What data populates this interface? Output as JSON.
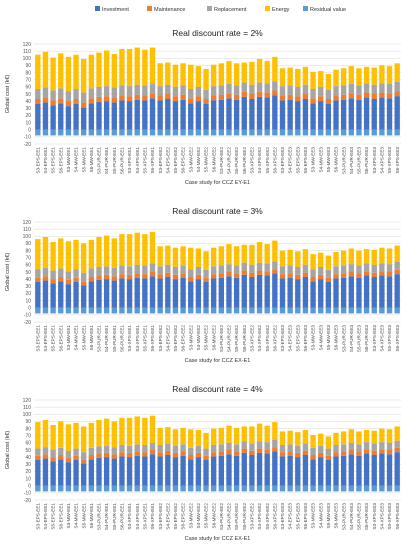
{
  "legend": {
    "items": [
      {
        "name": "Investment",
        "color": "#4472c4"
      },
      {
        "name": "Maintenance",
        "color": "#ed7d31"
      },
      {
        "name": "Replacement",
        "color": "#a5a5a5"
      },
      {
        "name": "Energy",
        "color": "#ffc000"
      },
      {
        "name": "Residual value",
        "color": "#5b9bd5"
      }
    ]
  },
  "categories": [
    "S3-EPS-EE1",
    "S4-EPS-EE1",
    "S5-EPS-EE1",
    "S6-EPS-EE1",
    "S3-MW-EE1",
    "S4-MW-EE1",
    "S5-MW-EE1",
    "S6-MW-EE1",
    "S3-PUR-EE1",
    "S4-PUR-EE1",
    "S5-PUR-EE1",
    "S6-PUR-EE1",
    "S3-XPS-EE1",
    "S4-XPS-EE1",
    "S5-XPS-EE1",
    "S6-XPS-EE1",
    "S3-EPS-EE2",
    "S4-EPS-EE2",
    "S5-EPS-EE2",
    "S6-EPS-EE2",
    "S3-MW-EE2",
    "S4-MW-EE2",
    "S5-MW-EE2",
    "S6-MW-EE2",
    "S3-PUR-EE2",
    "S4-PUR-EE2",
    "S5-PUR-EE2",
    "S6-PUR-EE2",
    "S3-XPS-EE2",
    "S4-XPS-EE2",
    "S5-XPS-EE2",
    "S6-XPS-EE2",
    "S3-EPS-EE3",
    "S4-EPS-EE3",
    "S5-EPS-EE3",
    "S6-EPS-EE3",
    "S3-MW-EE3",
    "S4-MW-EE3",
    "S5-MW-EE3",
    "S6-MW-EE3",
    "S3-PUR-EE3",
    "S4-PUR-EE3",
    "S5-PUR-EE3",
    "S6-PUR-EE3",
    "S3-XPS-EE3",
    "S4-XPS-EE3",
    "S5-XPS-EE3",
    "S6-XPS-EE3"
  ],
  "chart_data": [
    {
      "type": "bar",
      "stacked": true,
      "title": "Real discount rate = 2%",
      "xlabel": "Case study for CCZ EY-E1",
      "ylabel": "Global cost (k€)",
      "ylim": [
        -20,
        120
      ],
      "yticks": [
        -20,
        -10,
        0,
        10,
        20,
        30,
        40,
        50,
        60,
        70,
        80,
        90,
        100,
        110,
        120
      ],
      "grid": true,
      "legend_position": "top",
      "series": [
        {
          "name": "Investment",
          "values": [
            36,
            38,
            34,
            37,
            33,
            36,
            31,
            37,
            39,
            40,
            38,
            41,
            40,
            42,
            41,
            44,
            41,
            43,
            40,
            42,
            37,
            40,
            36,
            41,
            42,
            44,
            42,
            46,
            43,
            46,
            45,
            48,
            41,
            42,
            40,
            43,
            37,
            40,
            36,
            41,
            42,
            44,
            42,
            45,
            43,
            45,
            44,
            47
          ]
        },
        {
          "name": "Maintenance",
          "values": [
            7,
            7,
            7,
            7,
            7,
            7,
            7,
            7,
            7,
            7,
            7,
            7,
            7,
            7,
            7,
            7,
            7,
            7,
            7,
            7,
            7,
            7,
            7,
            7,
            7,
            7,
            7,
            7,
            7,
            7,
            7,
            7,
            7,
            7,
            7,
            7,
            7,
            7,
            7,
            7,
            7,
            7,
            7,
            7,
            7,
            7,
            7,
            7
          ]
        },
        {
          "name": "Replacement",
          "values": [
            14,
            14,
            14,
            14,
            14,
            14,
            14,
            14,
            14,
            14,
            14,
            14,
            14,
            14,
            14,
            14,
            13,
            13,
            13,
            13,
            13,
            13,
            13,
            13,
            13,
            13,
            13,
            13,
            13,
            13,
            13,
            13,
            13,
            13,
            13,
            13,
            13,
            13,
            13,
            13,
            13,
            13,
            13,
            13,
            13,
            13,
            13,
            13
          ]
        },
        {
          "name": "Energy",
          "values": [
            48,
            50,
            46,
            49,
            48,
            48,
            47,
            47,
            48,
            50,
            47,
            51,
            52,
            52,
            50,
            50,
            32,
            31,
            31,
            31,
            34,
            29,
            29,
            30,
            31,
            32,
            31,
            28,
            32,
            33,
            31,
            34,
            25,
            25,
            25,
            25,
            24,
            22,
            22,
            23,
            24,
            25,
            24,
            23,
            24,
            25,
            25,
            26
          ]
        },
        {
          "name": "Residual value",
          "values": [
            -8,
            -8,
            -8,
            -8,
            -8,
            -8,
            -8,
            -8,
            -8,
            -8,
            -8,
            -8,
            -8,
            -8,
            -8,
            -8,
            -8,
            -8,
            -8,
            -8,
            -8,
            -8,
            -8,
            -8,
            -8,
            -8,
            -8,
            -8,
            -8,
            -8,
            -8,
            -8,
            -8,
            -8,
            -8,
            -8,
            -8,
            -8,
            -8,
            -8,
            -8,
            -8,
            -8,
            -8,
            -8,
            -8,
            -8,
            -8
          ]
        }
      ]
    },
    {
      "type": "bar",
      "stacked": true,
      "title": "Real discount rate = 3%",
      "xlabel": "Case study for CCZ EX-E1",
      "ylabel": "Global cost (k€)",
      "ylim": [
        -20,
        120
      ],
      "yticks": [
        -20,
        -10,
        0,
        10,
        20,
        30,
        40,
        50,
        60,
        70,
        80,
        90,
        100,
        110,
        120
      ],
      "grid": true,
      "series": [
        {
          "name": "Investment",
          "values": [
            36,
            38,
            34,
            37,
            33,
            36,
            31,
            37,
            39,
            40,
            38,
            41,
            40,
            42,
            41,
            44,
            41,
            43,
            40,
            42,
            37,
            40,
            36,
            41,
            42,
            44,
            42,
            46,
            43,
            46,
            45,
            48,
            41,
            42,
            40,
            43,
            37,
            40,
            36,
            41,
            42,
            44,
            42,
            45,
            43,
            45,
            44,
            47
          ]
        },
        {
          "name": "Maintenance",
          "values": [
            6,
            6,
            6,
            6,
            6,
            6,
            6,
            6,
            6,
            6,
            6,
            6,
            6,
            6,
            6,
            6,
            6,
            6,
            6,
            6,
            6,
            6,
            6,
            6,
            6,
            6,
            6,
            6,
            6,
            6,
            6,
            6,
            6,
            6,
            6,
            6,
            6,
            6,
            6,
            6,
            6,
            6,
            6,
            6,
            6,
            6,
            6,
            6
          ]
        },
        {
          "name": "Replacement",
          "values": [
            12,
            12,
            12,
            12,
            12,
            12,
            12,
            12,
            12,
            12,
            12,
            12,
            12,
            12,
            12,
            12,
            11,
            11,
            11,
            11,
            11,
            11,
            11,
            11,
            11,
            11,
            11,
            11,
            11,
            11,
            11,
            11,
            11,
            11,
            11,
            11,
            11,
            11,
            11,
            11,
            11,
            11,
            11,
            11,
            11,
            11,
            11,
            11
          ]
        },
        {
          "name": "Energy",
          "values": [
            42,
            43,
            40,
            42,
            42,
            41,
            41,
            40,
            42,
            43,
            41,
            44,
            45,
            45,
            44,
            44,
            28,
            27,
            27,
            27,
            30,
            26,
            26,
            26,
            27,
            28,
            27,
            25,
            28,
            29,
            27,
            29,
            22,
            22,
            22,
            22,
            21,
            20,
            20,
            20,
            21,
            22,
            21,
            20,
            21,
            22,
            22,
            23
          ]
        },
        {
          "name": "Residual value",
          "values": [
            -8,
            -8,
            -8,
            -8,
            -8,
            -8,
            -8,
            -8,
            -8,
            -8,
            -8,
            -8,
            -8,
            -8,
            -8,
            -8,
            -8,
            -8,
            -8,
            -8,
            -8,
            -8,
            -8,
            -8,
            -8,
            -8,
            -8,
            -8,
            -8,
            -8,
            -8,
            -8,
            -8,
            -8,
            -8,
            -8,
            -8,
            -8,
            -8,
            -8,
            -8,
            -8,
            -8,
            -8,
            -8,
            -8,
            -8,
            -8
          ]
        }
      ]
    },
    {
      "type": "bar",
      "stacked": true,
      "title": "Real discount rate = 4%",
      "xlabel": "Case study for CCZ EX-E1",
      "ylabel": "Global cost (k€)",
      "ylim": [
        -20,
        120
      ],
      "yticks": [
        -20,
        -10,
        0,
        10,
        20,
        30,
        40,
        50,
        60,
        70,
        80,
        90,
        100,
        110,
        120
      ],
      "grid": true,
      "series": [
        {
          "name": "Investment",
          "values": [
            36,
            38,
            34,
            37,
            33,
            36,
            31,
            37,
            39,
            40,
            38,
            41,
            40,
            42,
            41,
            44,
            41,
            43,
            40,
            42,
            37,
            40,
            36,
            41,
            42,
            44,
            42,
            46,
            43,
            46,
            45,
            48,
            41,
            42,
            40,
            43,
            37,
            40,
            36,
            41,
            42,
            44,
            42,
            45,
            43,
            45,
            44,
            47
          ]
        },
        {
          "name": "Maintenance",
          "values": [
            6,
            6,
            6,
            6,
            6,
            6,
            6,
            6,
            6,
            6,
            6,
            6,
            6,
            6,
            6,
            6,
            6,
            6,
            6,
            6,
            6,
            6,
            6,
            6,
            6,
            6,
            6,
            6,
            6,
            6,
            6,
            6,
            6,
            6,
            6,
            6,
            6,
            6,
            6,
            6,
            6,
            6,
            6,
            6,
            6,
            6,
            6,
            6
          ]
        },
        {
          "name": "Replacement",
          "values": [
            10,
            10,
            10,
            10,
            10,
            10,
            10,
            10,
            10,
            10,
            10,
            10,
            10,
            10,
            10,
            10,
            10,
            10,
            10,
            10,
            10,
            10,
            10,
            10,
            10,
            10,
            10,
            10,
            10,
            10,
            10,
            10,
            10,
            10,
            10,
            10,
            10,
            10,
            10,
            10,
            10,
            10,
            10,
            10,
            10,
            10,
            10,
            10
          ]
        },
        {
          "name": "Energy",
          "values": [
            37,
            38,
            35,
            37,
            37,
            36,
            36,
            35,
            37,
            38,
            36,
            38,
            39,
            39,
            38,
            38,
            24,
            23,
            23,
            23,
            26,
            22,
            22,
            23,
            23,
            24,
            23,
            21,
            24,
            25,
            23,
            25,
            19,
            19,
            19,
            19,
            18,
            17,
            17,
            17,
            18,
            19,
            18,
            17,
            18,
            19,
            19,
            20
          ]
        },
        {
          "name": "Residual value",
          "values": [
            -8,
            -8,
            -8,
            -8,
            -8,
            -8,
            -8,
            -8,
            -8,
            -8,
            -8,
            -8,
            -8,
            -8,
            -8,
            -8,
            -8,
            -8,
            -8,
            -8,
            -8,
            -8,
            -8,
            -8,
            -8,
            -8,
            -8,
            -8,
            -8,
            -8,
            -8,
            -8,
            -8,
            -8,
            -8,
            -8,
            -8,
            -8,
            -8,
            -8,
            -8,
            -8,
            -8,
            -8,
            -8,
            -8,
            -8,
            -8
          ]
        }
      ]
    }
  ]
}
